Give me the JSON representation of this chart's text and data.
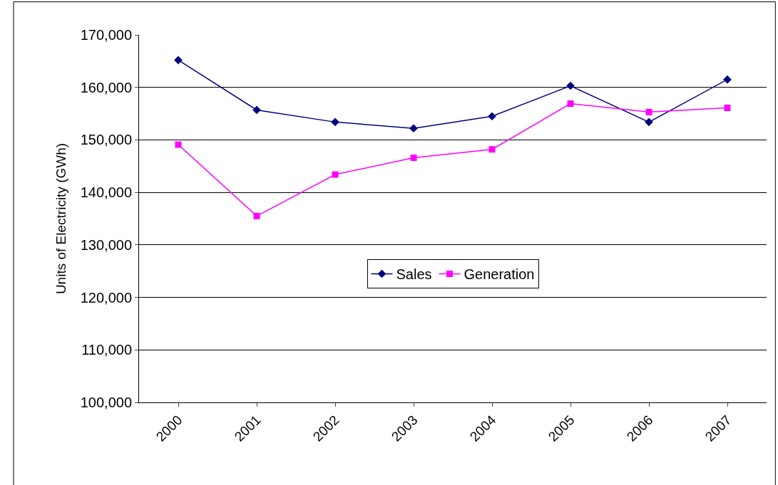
{
  "chart_data": {
    "type": "line",
    "ylabel": "Units of Electricity (GWh)",
    "categories": [
      "2000",
      "2001",
      "2002",
      "2003",
      "2004",
      "2005",
      "2006",
      "2007"
    ],
    "series": [
      {
        "name": "Sales",
        "color": "#000080",
        "marker": "diamond",
        "values": [
          165200,
          155700,
          153400,
          152200,
          154500,
          160300,
          153400,
          161500
        ]
      },
      {
        "name": "Generation",
        "color": "#ff00ff",
        "marker": "square",
        "values": [
          149100,
          135500,
          143400,
          146600,
          148200,
          156900,
          155300,
          156100
        ]
      }
    ],
    "ylim": [
      100000,
      170000
    ],
    "yticks": [
      {
        "value": 100000,
        "label": "100,000"
      },
      {
        "value": 110000,
        "label": "110,000"
      },
      {
        "value": 120000,
        "label": "120,000"
      },
      {
        "value": 130000,
        "label": "130,000"
      },
      {
        "value": 140000,
        "label": "140,000"
      },
      {
        "value": 150000,
        "label": "150,000"
      },
      {
        "value": 160000,
        "label": "160,000"
      },
      {
        "value": 170000,
        "label": "170,000"
      }
    ],
    "grid": "y",
    "legend": "center",
    "line_style": "solid"
  }
}
